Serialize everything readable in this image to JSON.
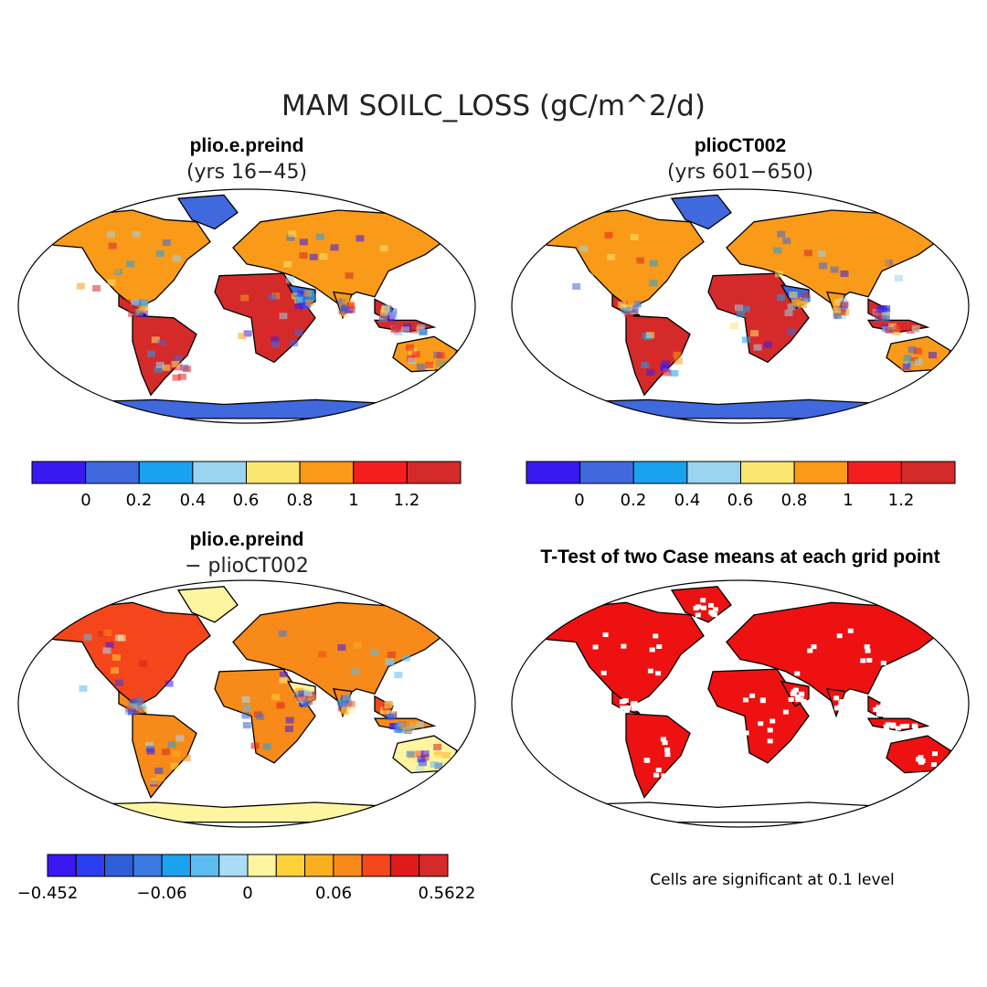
{
  "main_title": "MAM SOILC_LOSS (gC/m^2/d)",
  "colors": {
    "ocean": "#ffffff",
    "border": "#000000",
    "land_outline": "#000000",
    "significant": "#ee1111"
  },
  "chart_data": [
    {
      "type": "heatmap",
      "title": "plio.e.preind",
      "subtitle": "(yrs 16−45)",
      "projection": "Robinson",
      "colorbar": {
        "colors": [
          "#3a19f0",
          "#3f69dc",
          "#1aa2ee",
          "#9ad4ee",
          "#f9e671",
          "#f99a19",
          "#f51e1e",
          "#d42a2a"
        ],
        "tick_labels": [
          "0",
          "0.2",
          "0.4",
          "0.6",
          "0.8",
          "1",
          "1.2"
        ]
      },
      "field_levels": {
        "background": 1,
        "mid": 5,
        "hot": 7
      }
    },
    {
      "type": "heatmap",
      "title": "plioCT002",
      "subtitle": "(yrs 601−650)",
      "projection": "Robinson",
      "colorbar": {
        "colors": [
          "#3a19f0",
          "#3f69dc",
          "#1aa2ee",
          "#9ad4ee",
          "#f9e671",
          "#f99a19",
          "#f51e1e",
          "#d42a2a"
        ],
        "tick_labels": [
          "0",
          "0.2",
          "0.4",
          "0.6",
          "0.8",
          "1",
          "1.2"
        ]
      },
      "field_levels": {
        "background": 1,
        "mid": 5,
        "hot": 7
      }
    },
    {
      "type": "heatmap",
      "title": "plio.e.preind",
      "subtitle": "− plioCT002",
      "projection": "Robinson",
      "colorbar": {
        "colors": [
          "#3a19f0",
          "#2b3ef0",
          "#2f5fd8",
          "#3a7ae0",
          "#1aa2ee",
          "#5cbcf0",
          "#aadcf5",
          "#fdf5a0",
          "#fcd23a",
          "#f9b020",
          "#f78a18",
          "#f5451a",
          "#e01a1a",
          "#d42a2a"
        ],
        "tick_labels": [
          "−0.452",
          "−0.06",
          "0",
          "0.06",
          "0.5622"
        ]
      },
      "field_levels": {
        "background": 7,
        "mid": 10,
        "hot": 11
      }
    },
    {
      "type": "heatmap",
      "title": "T-Test of two Case means at each grid point",
      "projection": "Robinson",
      "note": "Cells are significant at 0.1 level"
    }
  ]
}
